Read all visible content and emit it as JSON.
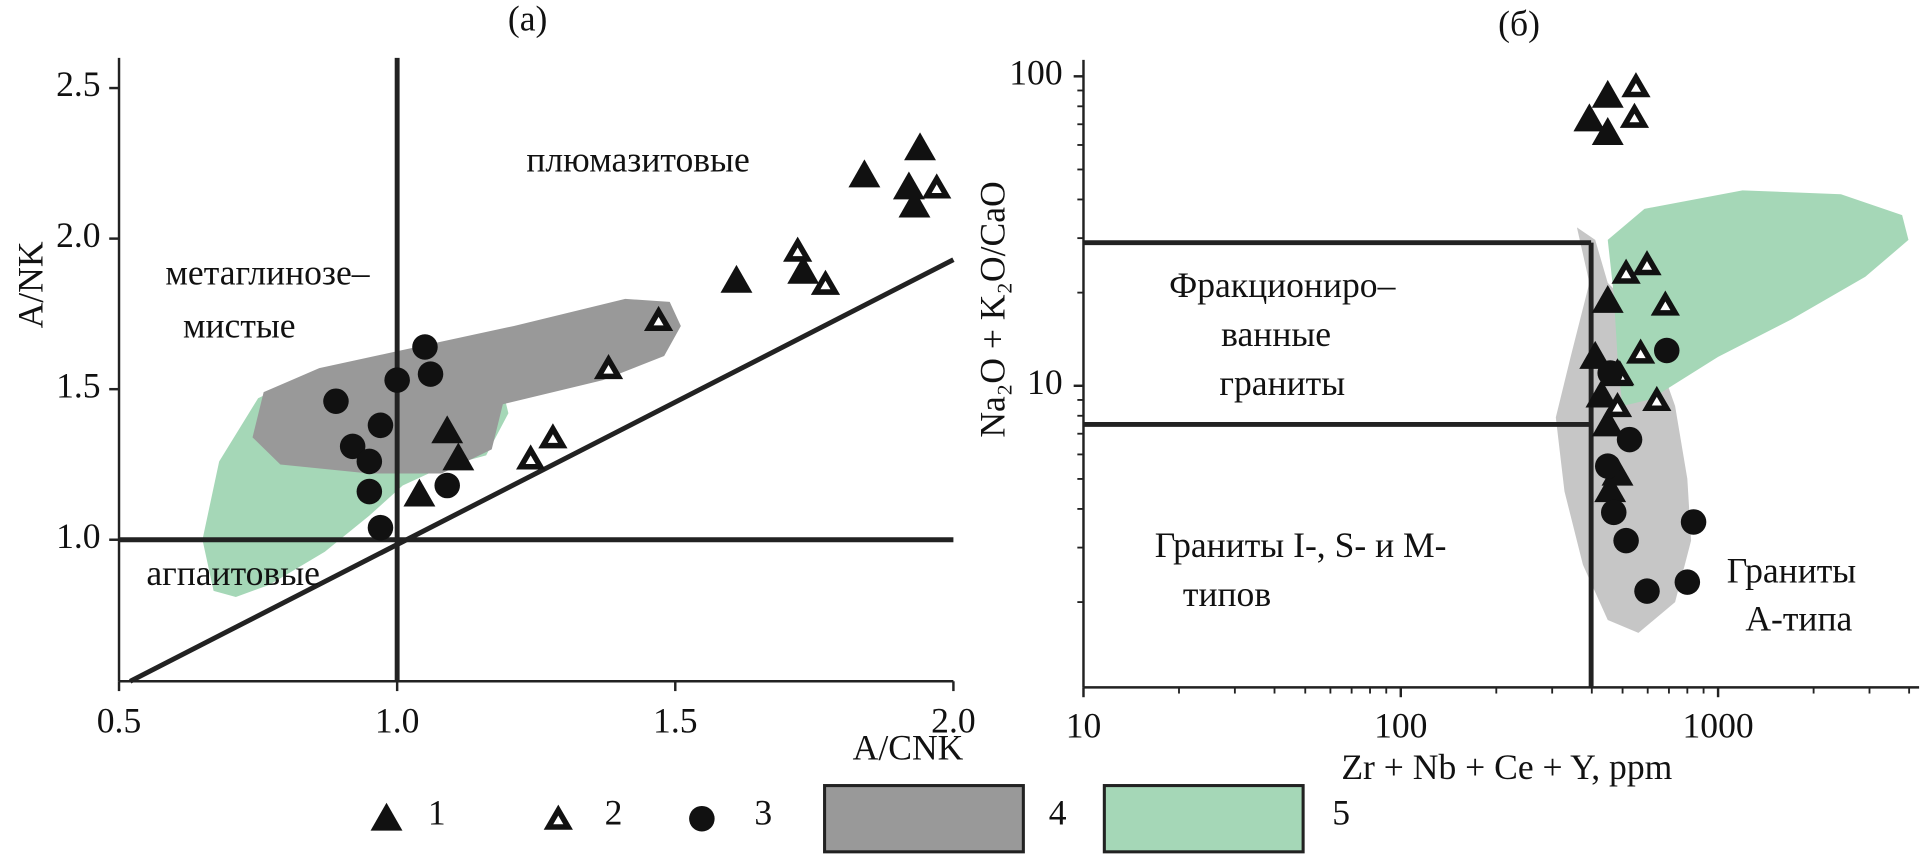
{
  "chart_data": [
    {
      "type": "scatter",
      "title": "(a)",
      "xlabel": "A/CNK",
      "ylabel": "A/NK",
      "xlim": [
        0.5,
        2.0
      ],
      "ylim": [
        0.53,
        2.6
      ],
      "xticks": [
        0.5,
        {
          "value": 1,
          "label": "1.0"
        },
        1.5,
        {
          "value": 2,
          "label": "2.0"
        }
      ],
      "yticks": [
        {
          "value": 1,
          "label": "1.0"
        },
        1.5,
        {
          "value": 2,
          "label": "2.0"
        },
        2.5
      ],
      "regions": [
        {
          "color": "#a5d7b7",
          "x": [
            0.67,
            0.65,
            0.68,
            0.75,
            0.84,
            0.99,
            1.1,
            1.18,
            1.2,
            1.16,
            1.08,
            1.01,
            0.95,
            0.87,
            0.77,
            0.71
          ],
          "y": [
            0.83,
            1.0,
            1.26,
            1.47,
            1.55,
            1.62,
            1.62,
            1.57,
            1.42,
            1.28,
            1.24,
            1.18,
            1.08,
            0.96,
            0.85,
            0.81
          ]
        },
        {
          "color": "#999999",
          "x": [
            0.74,
            0.76,
            0.86,
            1.01,
            1.21,
            1.41,
            1.49,
            1.51,
            1.48,
            1.37,
            1.19,
            1.17,
            1.08,
            0.95,
            0.79
          ],
          "y": [
            1.34,
            1.49,
            1.57,
            1.63,
            1.71,
            1.8,
            1.79,
            1.71,
            1.61,
            1.53,
            1.45,
            1.3,
            1.22,
            1.22,
            1.25
          ]
        }
      ],
      "lines": [
        {
          "x": [
            1,
            1
          ],
          "y": [
            0.53,
            2.6
          ]
        },
        {
          "x": [
            0.5,
            2.0
          ],
          "y": [
            1,
            1
          ]
        },
        {
          "x": [
            0.52,
            2.0
          ],
          "y": [
            0.53,
            1.93
          ]
        }
      ],
      "series": [
        {
          "marker": "filled-triangle",
          "x": [
            1.94,
            1.84,
            1.92,
            1.93,
            1.61,
            1.73,
            1.09,
            1.11,
            1.04
          ],
          "y": [
            2.3,
            2.21,
            2.17,
            2.11,
            1.86,
            1.89,
            1.36,
            1.27,
            1.15
          ]
        },
        {
          "marker": "open-triangle",
          "x": [
            1.97,
            1.72,
            1.77,
            1.47,
            1.38,
            1.28,
            1.24
          ],
          "y": [
            2.17,
            1.96,
            1.85,
            1.73,
            1.57,
            1.34,
            1.27
          ]
        },
        {
          "marker": "circle",
          "x": [
            1.05,
            1.06,
            1.0,
            0.89,
            0.97,
            0.92,
            0.95,
            0.95,
            1.09,
            0.97
          ],
          "y": [
            1.64,
            1.55,
            1.53,
            1.46,
            1.38,
            1.31,
            1.26,
            1.16,
            1.18,
            1.04
          ]
        }
      ],
      "annotations": [
        "плюмазитовые",
        "метаглинозе–",
        "мистые",
        "агпаитовые"
      ]
    },
    {
      "type": "scatter",
      "title": "(б)",
      "xlabel": "Zr + Nb + Ce + Y, ppm",
      "ylabel": "Na₂O + K₂O/CaO",
      "log_x": true,
      "log_y": true,
      "xlim": [
        10,
        4300
      ],
      "ylim": [
        1.06,
        113
      ],
      "xticks": [
        10,
        100,
        1000
      ],
      "xminorticks": [
        20,
        30,
        40,
        50,
        60,
        70,
        80,
        90,
        200,
        300,
        400,
        500,
        600,
        700,
        800,
        900,
        2000,
        3000,
        4000
      ],
      "yticks": [
        10,
        100
      ],
      "yminorticks": [
        2,
        3,
        4,
        5,
        6,
        7,
        8,
        9,
        20,
        30,
        40,
        50,
        60,
        70,
        80,
        90
      ],
      "regions": [
        {
          "color": "#c6c6c6",
          "x": [
            359,
            410,
            449,
            586,
            732,
            800,
            822,
            732,
            561,
            449,
            375,
            328,
            308,
            343,
            393
          ],
          "y": [
            32.5,
            29.6,
            21.5,
            16.4,
            8.6,
            5.0,
            3.16,
            2.0,
            1.59,
            1.75,
            2.64,
            4.56,
            7.9,
            12.4,
            21.5
          ]
        },
        {
          "color": "#a5d7b7",
          "x": [
            449,
            586,
            1194,
            2439,
            3802,
            3981,
            2911,
            1706,
            1000,
            612,
            499,
            482,
            469
          ],
          "y": [
            29.6,
            37.3,
            42.8,
            41.6,
            35.6,
            29.6,
            22.5,
            16.4,
            12.4,
            9.04,
            8.6,
            12.4,
            19.7
          ]
        }
      ],
      "lines": [
        {
          "x": [
            10,
            398
          ],
          "y": [
            29,
            29
          ]
        },
        {
          "x": [
            10,
            398
          ],
          "y": [
            7.5,
            7.5
          ]
        },
        {
          "x": [
            398,
            398
          ],
          "y": [
            29,
            1.06
          ]
        }
      ],
      "series": [
        {
          "marker": "filled-triangle",
          "x": [
            449,
            393,
            449,
            449,
            410,
            482,
            429,
            449,
            482,
            457
          ],
          "y": [
            86.5,
            72.6,
            65.6,
            18.8,
            12.4,
            10.9,
            9.3,
            7.5,
            5.2,
            4.6
          ]
        },
        {
          "marker": "open-triangle",
          "x": [
            551,
            545,
            513,
            597,
            682,
            570,
            490,
            641,
            482
          ],
          "y": [
            92.9,
            74,
            23.2,
            24.7,
            18.3,
            12.8,
            10.9,
            9.0,
            8.6
          ]
        },
        {
          "marker": "circle",
          "x": [
            689,
            457,
            526,
            449,
            469,
            513,
            837,
            800,
            597
          ],
          "y": [
            13.0,
            11.0,
            6.7,
            5.5,
            3.9,
            3.16,
            3.63,
            2.32,
            2.17
          ]
        }
      ],
      "annotations": [
        "Фракциониро–",
        "ванные",
        "граниты",
        "Граниты I-, S- и M-",
        "типов",
        "Граниты",
        "А-типа"
      ]
    }
  ],
  "legend": [
    {
      "name": "1",
      "marker": "filled-triangle"
    },
    {
      "name": "2",
      "marker": "open-triangle"
    },
    {
      "name": "3",
      "marker": "circle"
    },
    {
      "name": "4",
      "color": "#999999"
    },
    {
      "name": "5",
      "color": "#a5d7b7"
    }
  ]
}
